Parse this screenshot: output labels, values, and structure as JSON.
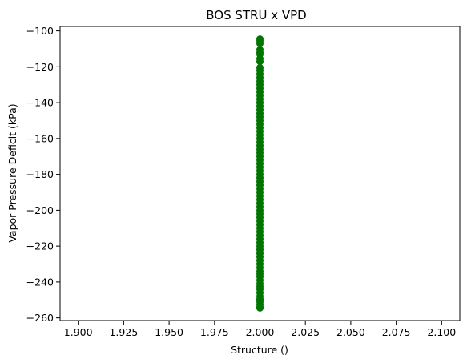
{
  "chart_data": {
    "type": "scatter",
    "title": "BOS STRU x VPD",
    "xlabel": "Structure ()",
    "ylabel": "Vapor Pressure Deficit (kPa)",
    "xlim": [
      1.89,
      2.11
    ],
    "ylim": [
      -261.5,
      -97.5
    ],
    "x_ticks": [
      1.9,
      1.925,
      1.95,
      1.975,
      2.0,
      2.025,
      2.05,
      2.075,
      2.1
    ],
    "x_tick_labels": [
      "1.900",
      "1.925",
      "1.950",
      "1.975",
      "2.000",
      "2.025",
      "2.050",
      "2.075",
      "2.100"
    ],
    "y_ticks": [
      -260,
      -240,
      -220,
      -200,
      -180,
      -160,
      -140,
      -120,
      -100
    ],
    "y_tick_labels": [
      "−260",
      "−240",
      "−220",
      "−200",
      "−180",
      "−160",
      "−140",
      "−120",
      "−100"
    ],
    "grid": false,
    "legend": "none",
    "series": [
      {
        "color": "#007500",
        "x": [
          2.0,
          2.0,
          2.0,
          2.0,
          2.0,
          2.0,
          2.0,
          2.0,
          2.0,
          2.0,
          2.0,
          2.0,
          2.0,
          2.0,
          2.0,
          2.0,
          2.0,
          2.0,
          2.0,
          2.0,
          2.0,
          2.0,
          2.0,
          2.0,
          2.0,
          2.0,
          2.0,
          2.0,
          2.0,
          2.0,
          2.0,
          2.0,
          2.0,
          2.0,
          2.0,
          2.0,
          2.0,
          2.0,
          2.0,
          2.0,
          2.0,
          2.0,
          2.0,
          2.0,
          2.0,
          2.0,
          2.0,
          2.0,
          2.0,
          2.0,
          2.0,
          2.0,
          2.0,
          2.0,
          2.0,
          2.0,
          2.0,
          2.0,
          2.0,
          2.0,
          2.0,
          2.0,
          2.0,
          2.0,
          2.0,
          2.0,
          2.0,
          2.0,
          2.0,
          2.0,
          2.0,
          2.0,
          2.0,
          2.0,
          2.0,
          2.0,
          2.0,
          2.0,
          2.0,
          2.0
        ],
        "y": [
          -104.5,
          -105.5,
          -107,
          -110.5,
          -112,
          -113,
          -115.5,
          -117,
          -120.5,
          -122,
          -124,
          -126,
          -128,
          -130,
          -132,
          -134,
          -136,
          -138,
          -140,
          -142,
          -144,
          -146,
          -148,
          -150,
          -152,
          -154,
          -156,
          -158,
          -160,
          -162,
          -164,
          -166,
          -168,
          -170,
          -172,
          -174,
          -176,
          -178,
          -180,
          -182,
          -184,
          -186,
          -188,
          -190,
          -192,
          -194,
          -196,
          -198,
          -200,
          -202,
          -204,
          -206,
          -208,
          -210,
          -212,
          -214,
          -216,
          -218,
          -220,
          -222,
          -224,
          -226,
          -228,
          -230,
          -232,
          -234,
          -235.5,
          -237,
          -239,
          -241,
          -242.5,
          -244,
          -246,
          -248,
          -249.5,
          -251,
          -252.5,
          -254,
          -254.5,
          -250
        ]
      }
    ]
  }
}
